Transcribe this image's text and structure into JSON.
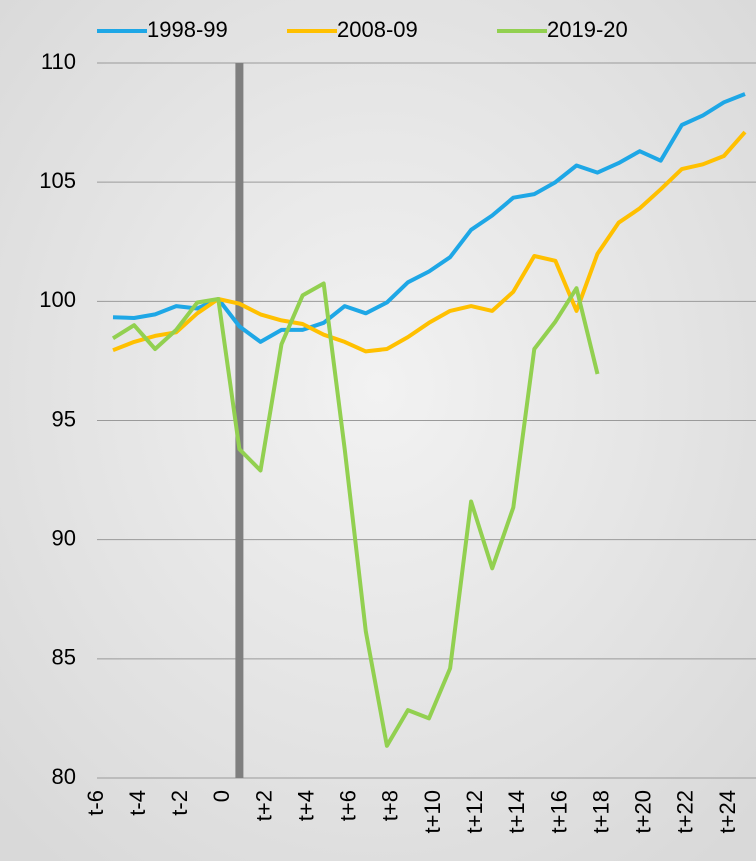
{
  "chart_data": {
    "type": "line",
    "categories": [
      "t-6",
      null,
      "t-4",
      null,
      "t-2",
      null,
      "0",
      null,
      "t+2",
      null,
      "t+4",
      null,
      "t+6",
      null,
      "t+8",
      null,
      "t+10",
      null,
      "t+12",
      null,
      "t+14",
      null,
      "t+16",
      null,
      "t+18",
      null,
      "t+20",
      null,
      "t+22",
      null,
      "t+24"
    ],
    "series": [
      {
        "name": "1998-99",
        "color": "#1ea7e6",
        "values": [
          99.33,
          99.3,
          99.45,
          99.8,
          99.7,
          100.1,
          98.95,
          98.3,
          98.8,
          98.8,
          99.1,
          99.8,
          99.5,
          99.95,
          100.8,
          101.25,
          101.85,
          103.0,
          103.6,
          104.35,
          104.5,
          105.0,
          105.7,
          105.4,
          105.8,
          106.3,
          105.9,
          107.4,
          107.8,
          108.35,
          108.7
        ]
      },
      {
        "name": "2008-09",
        "color": "#ffc000",
        "values": [
          97.95,
          98.3,
          98.55,
          98.7,
          99.5,
          100.1,
          99.9,
          99.45,
          99.2,
          99.05,
          98.6,
          98.3,
          97.9,
          98.0,
          98.5,
          99.1,
          99.6,
          99.8,
          99.6,
          100.4,
          101.9,
          101.7,
          99.6,
          102.0,
          103.3,
          103.9,
          104.7,
          105.55,
          105.75,
          106.1,
          107.1
        ]
      },
      {
        "name": "2019-20",
        "color": "#92d050",
        "values": [
          98.45,
          99.0,
          98.0,
          98.8,
          99.95,
          100.1,
          93.8,
          92.9,
          98.2,
          100.25,
          100.75,
          93.8,
          86.15,
          81.35,
          82.85,
          82.5,
          84.6,
          91.6,
          88.8,
          91.35,
          98.0,
          99.15,
          100.55,
          96.95,
          null,
          null,
          null,
          null,
          null,
          null,
          null
        ]
      }
    ],
    "ylim": [
      80,
      110
    ],
    "yticks": [
      80,
      85,
      90,
      95,
      100,
      105,
      110
    ],
    "grid": true
  }
}
